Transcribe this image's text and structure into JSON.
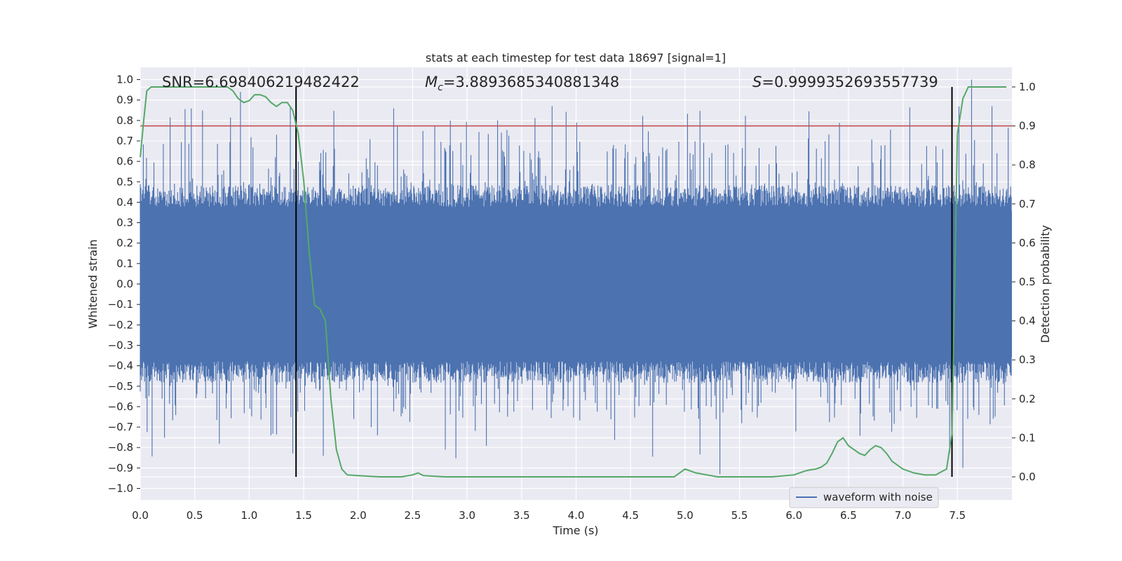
{
  "chart_data": {
    "type": "line",
    "title": "stats at each timestep for test data 18697 [signal=1]",
    "xlabel": "Time (s)",
    "ylabel_left": "Whitened strain",
    "ylabel_right": "Detection probability",
    "xlim": [
      0.0,
      8.0
    ],
    "ylim_left": [
      -1.05,
      1.05
    ],
    "ylim_right": [
      -0.05,
      1.05
    ],
    "x_ticks": [
      0.0,
      0.5,
      1.0,
      1.5,
      2.0,
      2.5,
      3.0,
      3.5,
      4.0,
      4.5,
      5.0,
      5.5,
      6.0,
      6.5,
      7.0,
      7.5
    ],
    "x_tick_labels": [
      "0.0",
      "0.5",
      "1.0",
      "1.5",
      "2.0",
      "2.5",
      "3.0",
      "3.5",
      "4.0",
      "4.5",
      "5.0",
      "5.5",
      "6.0",
      "6.5",
      "7.0",
      "7.5"
    ],
    "y_left_ticks": [
      -1.0,
      -0.9,
      -0.8,
      -0.7,
      -0.6,
      -0.5,
      -0.4,
      -0.3,
      -0.2,
      -0.1,
      0.0,
      0.1,
      0.2,
      0.3,
      0.4,
      0.5,
      0.6,
      0.7,
      0.8,
      0.9,
      1.0
    ],
    "y_left_tick_labels": [
      "−1.0",
      "−0.9",
      "−0.8",
      "−0.7",
      "−0.6",
      "−0.5",
      "−0.4",
      "−0.3",
      "−0.2",
      "−0.1",
      "0.0",
      "0.1",
      "0.2",
      "0.3",
      "0.4",
      "0.5",
      "0.6",
      "0.7",
      "0.8",
      "0.9",
      "1.0"
    ],
    "y_right_ticks": [
      0.0,
      0.1,
      0.2,
      0.3,
      0.4,
      0.5,
      0.6,
      0.7,
      0.8,
      0.9,
      1.0
    ],
    "y_right_tick_labels": [
      "0.0",
      "0.1",
      "0.2",
      "0.3",
      "0.4",
      "0.5",
      "0.6",
      "0.7",
      "0.8",
      "0.9",
      "1.0"
    ],
    "grid": true,
    "legend": {
      "placement": "lower-right",
      "entries": [
        {
          "label": "waveform with noise",
          "color": "#4c72b0"
        }
      ]
    },
    "annotations": {
      "snr": "SNR=6.698406219482422",
      "mc_symbol": "M",
      "mc_sub": "c",
      "mc_value": "=3.8893685340881348",
      "s_symbol": "S",
      "s_value": "=0.9999352693557739"
    },
    "threshold": {
      "axis": "right",
      "value": 0.9,
      "color": "#c44e52"
    },
    "vertical_lines": [
      {
        "x": 1.43,
        "color": "#000000"
      },
      {
        "x": 7.45,
        "color": "#000000"
      }
    ],
    "waveform": {
      "name": "waveform with noise",
      "color": "#4c72b0",
      "x_range": [
        0.0,
        8.0
      ],
      "core_amplitude": 0.42,
      "max_peak": 1.0,
      "min_peak": -0.93
    },
    "detection_probability": {
      "axis": "right",
      "color": "#55a868",
      "x": [
        0.0,
        0.03,
        0.06,
        0.1,
        0.2,
        0.4,
        0.6,
        0.8,
        0.85,
        0.9,
        0.95,
        1.0,
        1.05,
        1.1,
        1.15,
        1.2,
        1.25,
        1.3,
        1.35,
        1.4,
        1.45,
        1.5,
        1.55,
        1.6,
        1.65,
        1.7,
        1.75,
        1.8,
        1.85,
        1.9,
        2.0,
        2.2,
        2.4,
        2.5,
        2.55,
        2.6,
        2.8,
        3.0,
        3.5,
        4.0,
        4.5,
        4.9,
        4.95,
        5.0,
        5.1,
        5.2,
        5.3,
        5.5,
        5.8,
        6.0,
        6.1,
        6.15,
        6.2,
        6.25,
        6.3,
        6.35,
        6.4,
        6.45,
        6.5,
        6.55,
        6.6,
        6.65,
        6.7,
        6.75,
        6.8,
        6.85,
        6.9,
        7.0,
        7.1,
        7.2,
        7.3,
        7.4,
        7.45,
        7.5,
        7.55,
        7.6,
        7.7,
        7.8,
        7.95
      ],
      "y": [
        0.82,
        0.91,
        0.99,
        1.0,
        1.0,
        1.0,
        1.0,
        1.0,
        0.99,
        0.97,
        0.96,
        0.965,
        0.98,
        0.98,
        0.975,
        0.96,
        0.95,
        0.96,
        0.96,
        0.94,
        0.88,
        0.76,
        0.58,
        0.44,
        0.43,
        0.4,
        0.2,
        0.07,
        0.02,
        0.005,
        0.003,
        0.0,
        0.0,
        0.005,
        0.01,
        0.003,
        0.0,
        0.0,
        0.0,
        0.0,
        0.0,
        0.0,
        0.01,
        0.02,
        0.01,
        0.005,
        0.0,
        0.0,
        0.0,
        0.005,
        0.015,
        0.018,
        0.02,
        0.025,
        0.035,
        0.06,
        0.09,
        0.1,
        0.08,
        0.07,
        0.06,
        0.055,
        0.07,
        0.08,
        0.075,
        0.06,
        0.04,
        0.02,
        0.01,
        0.005,
        0.005,
        0.02,
        0.11,
        0.88,
        0.97,
        1.0,
        1.0,
        1.0,
        1.0
      ]
    }
  }
}
